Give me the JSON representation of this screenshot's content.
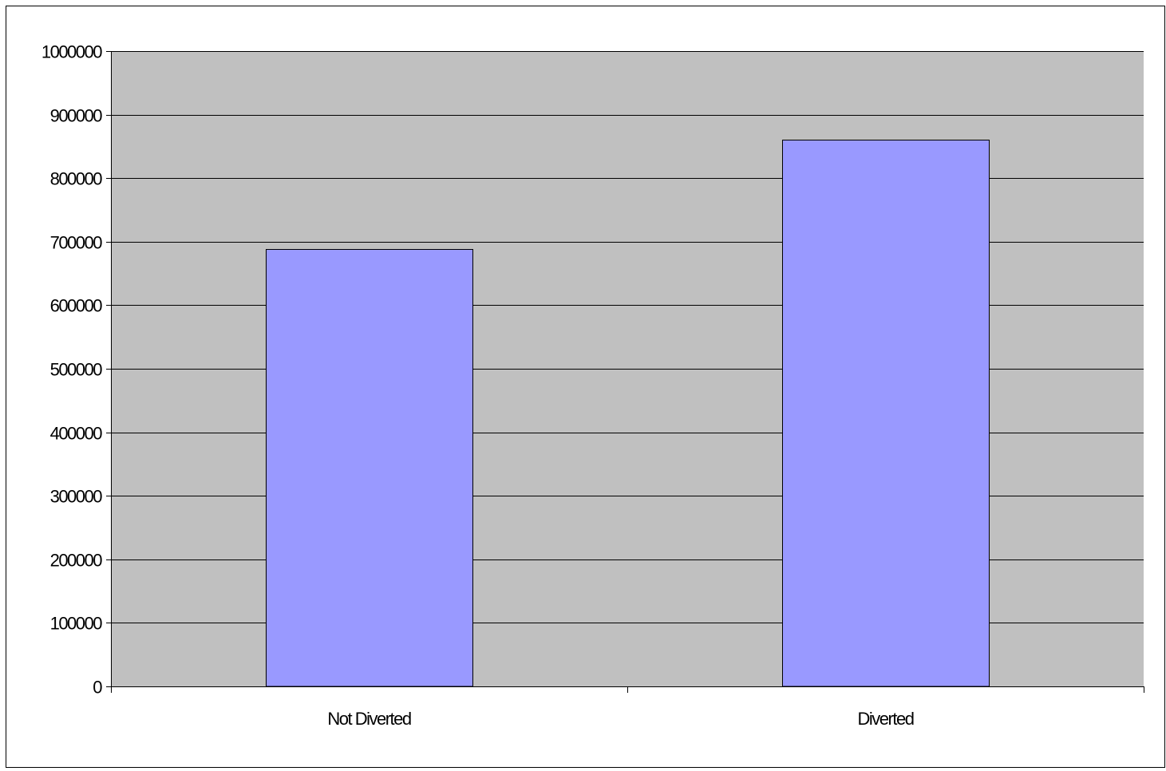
{
  "chart_data": {
    "type": "bar",
    "title": "",
    "xlabel": "",
    "ylabel": "",
    "categories": [
      "Not Diverted",
      "Diverted"
    ],
    "series": [
      {
        "values": [
          688000,
          861000
        ]
      }
    ],
    "ylim": [
      0,
      1000000
    ],
    "yticks": [
      0,
      100000,
      200000,
      300000,
      400000,
      500000,
      600000,
      700000,
      800000,
      900000,
      1000000
    ],
    "ytick_labels": [
      "0",
      "100000",
      "200000",
      "300000",
      "400000",
      "500000",
      "600000",
      "700000",
      "800000",
      "900000",
      "1000000"
    ],
    "grid": true,
    "legend": "none",
    "colors": {
      "plot_background": "#c0c0c0",
      "bar_fill": "#9999ff",
      "bar_stroke": "#000000",
      "gridline": "#000000",
      "page_background": "#ffffff",
      "frame": "#000000"
    }
  }
}
